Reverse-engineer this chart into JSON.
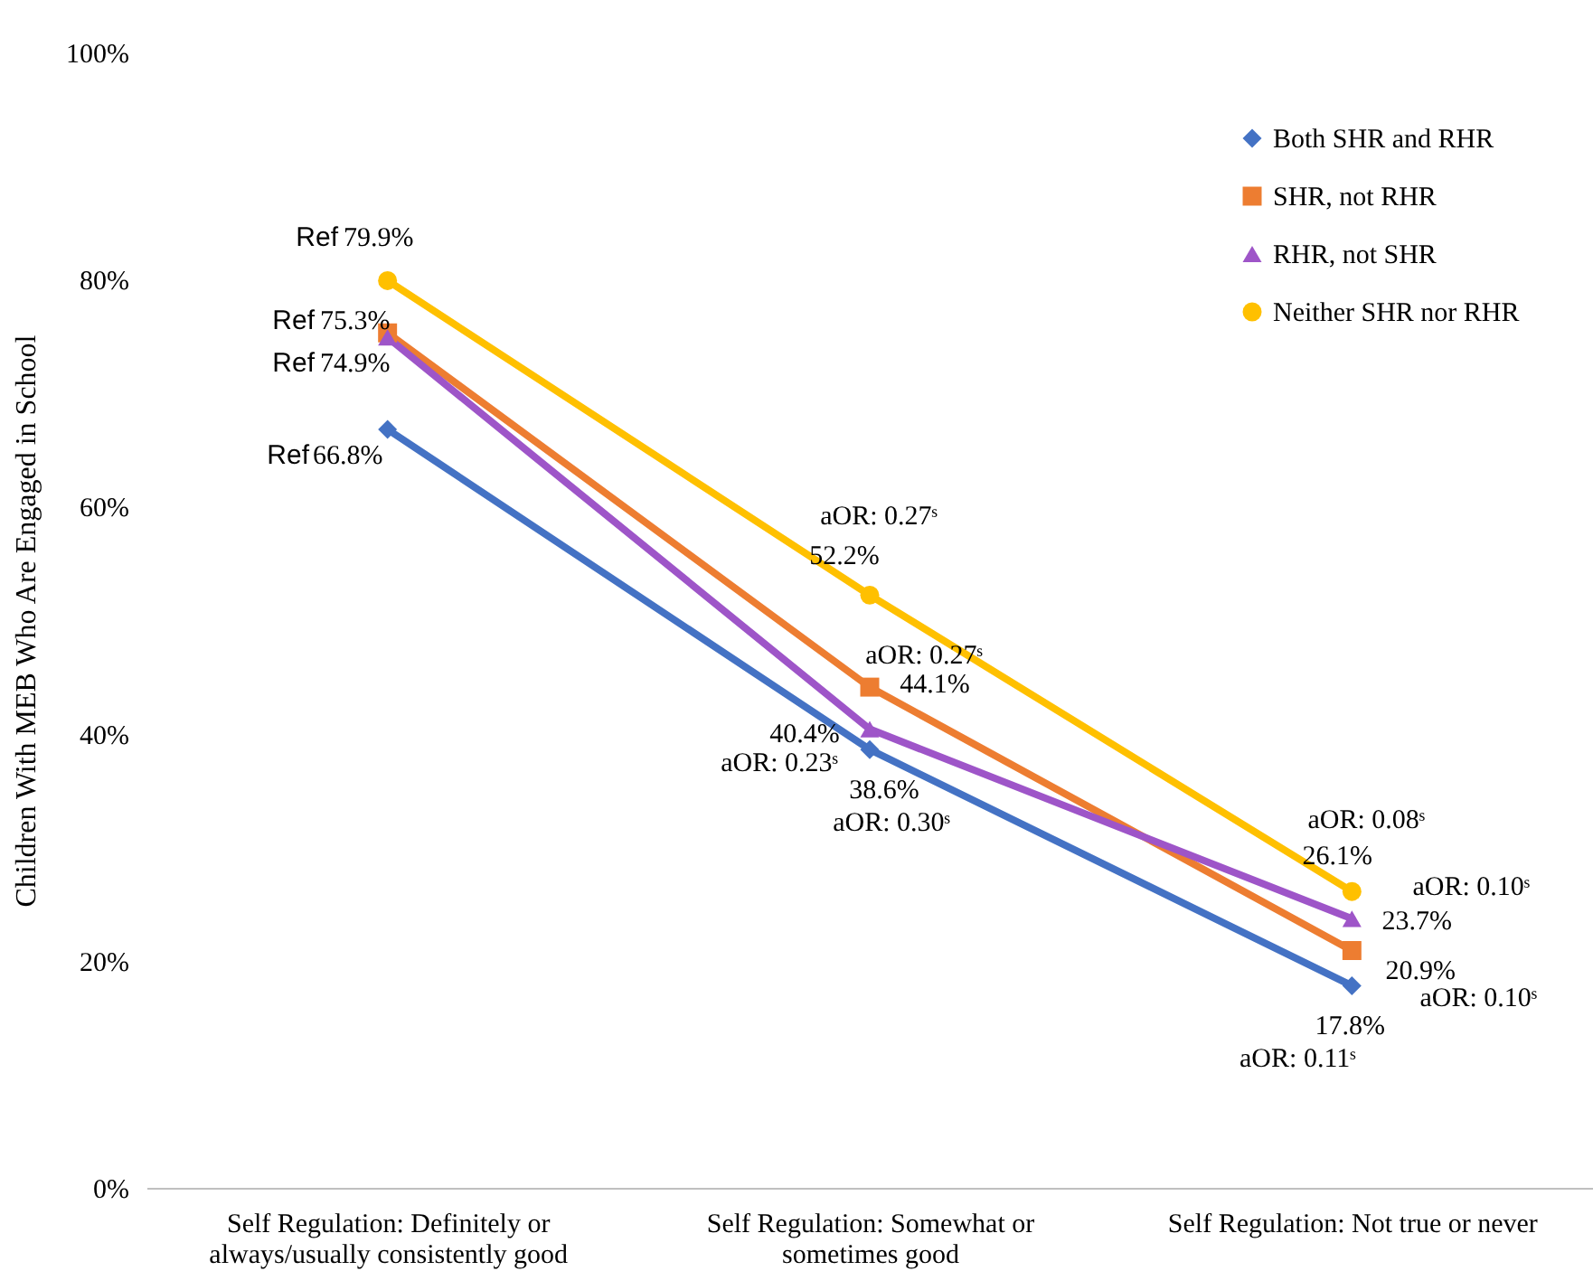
{
  "chart_data": {
    "type": "line",
    "ylabel": "Children With MEB Who Are Engaged in School",
    "categories": [
      "Self Regulation: Definitely or always/usually consistently good",
      "Self Regulation: Somewhat or sometimes good",
      "Self Regulation: Not true or never"
    ],
    "series": [
      {
        "name": "Both SHR and RHR",
        "color": "#4472c4",
        "marker": "diamond",
        "values": [
          66.8,
          38.6,
          17.8
        ],
        "value_labels": [
          "66.8%",
          "38.6%",
          "17.8%"
        ]
      },
      {
        "name": "SHR, not RHR",
        "color": "#ed7d31",
        "marker": "square",
        "values": [
          75.3,
          44.1,
          20.9
        ],
        "value_labels": [
          "75.3%",
          "44.1%",
          "20.9%"
        ]
      },
      {
        "name": "RHR, not SHR",
        "color": "#9e55c8",
        "marker": "triangle",
        "values": [
          74.9,
          40.4,
          23.7
        ],
        "value_labels": [
          "74.9%",
          "40.4%",
          "23.7%"
        ]
      },
      {
        "name": "Neither SHR nor RHR",
        "color": "#ffc000",
        "marker": "circle",
        "values": [
          79.9,
          52.2,
          26.1
        ],
        "value_labels": [
          "79.9%",
          "52.2%",
          "26.1%"
        ]
      }
    ],
    "ylim": [
      0,
      100
    ],
    "yticks": [
      {
        "value": 0,
        "label": "0%"
      },
      {
        "value": 20,
        "label": "20%"
      },
      {
        "value": 40,
        "label": "40%"
      },
      {
        "value": 60,
        "label": "60%"
      },
      {
        "value": 80,
        "label": "80%"
      },
      {
        "value": 100,
        "label": "100%"
      }
    ],
    "annotations": [
      {
        "text": "Ref",
        "x": "Self Regulation: Definitely or always/usually consistently good",
        "y": 66.8
      },
      {
        "text": "Ref",
        "x": "Self Regulation: Definitely or always/usually consistently good",
        "y": 75.3
      },
      {
        "text": "Ref",
        "x": "Self Regulation: Definitely or always/usually consistently good",
        "y": 74.9
      },
      {
        "text": "Ref",
        "x": "Self Regulation: Definitely or always/usually consistently good",
        "y": 79.9
      },
      {
        "text": "aOR: 0.30ˢ",
        "x": "Self Regulation: Somewhat or sometimes good",
        "y": 38.6
      },
      {
        "text": "aOR: 0.27ˢ",
        "x": "Self Regulation: Somewhat or sometimes good",
        "y": 44.1
      },
      {
        "text": "aOR: 0.23ˢ",
        "x": "Self Regulation: Somewhat or sometimes good",
        "y": 40.4
      },
      {
        "text": "aOR: 0.27ˢ",
        "x": "Self Regulation: Somewhat or sometimes good",
        "y": 52.2
      },
      {
        "text": "aOR: 0.11ˢ",
        "x": "Self Regulation: Not true or never",
        "y": 17.8
      },
      {
        "text": "aOR: 0.10ˢ",
        "x": "Self Regulation: Not true or never",
        "y": 20.9
      },
      {
        "text": "aOR: 0.10ˢ",
        "x": "Self Regulation: Not true or never",
        "y": 23.7
      },
      {
        "text": "aOR: 0.08ˢ",
        "x": "Self Regulation: Not true or never",
        "y": 26.1
      }
    ],
    "grid": false,
    "legend": "top right"
  }
}
